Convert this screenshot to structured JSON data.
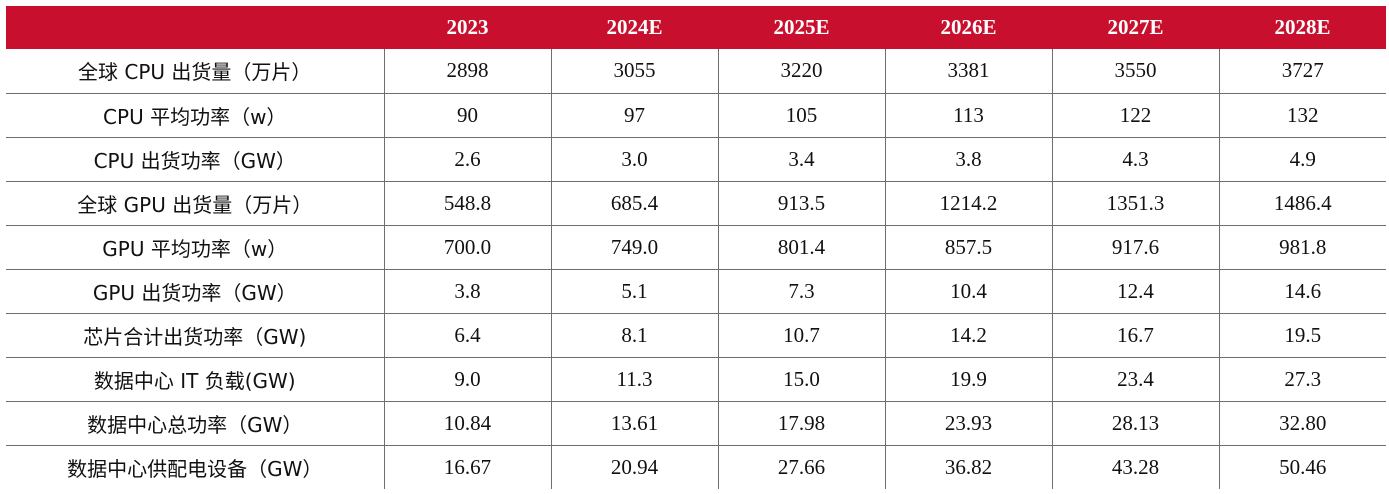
{
  "table": {
    "header": {
      "corner": "",
      "years": [
        "2023",
        "2024E",
        "2025E",
        "2026E",
        "2027E",
        "2028E"
      ]
    },
    "rows": [
      {
        "label": "全球 CPU 出货量（万片）",
        "values": [
          "2898",
          "3055",
          "3220",
          "3381",
          "3550",
          "3727"
        ]
      },
      {
        "label": "CPU 平均功率（w）",
        "values": [
          "90",
          "97",
          "105",
          "113",
          "122",
          "132"
        ]
      },
      {
        "label": "CPU 出货功率（GW）",
        "values": [
          "2.6",
          "3.0",
          "3.4",
          "3.8",
          "4.3",
          "4.9"
        ]
      },
      {
        "label": "全球 GPU 出货量（万片）",
        "values": [
          "548.8",
          "685.4",
          "913.5",
          "1214.2",
          "1351.3",
          "1486.4"
        ]
      },
      {
        "label": "GPU 平均功率（w）",
        "values": [
          "700.0",
          "749.0",
          "801.4",
          "857.5",
          "917.6",
          "981.8"
        ]
      },
      {
        "label": "GPU 出货功率（GW）",
        "values": [
          "3.8",
          "5.1",
          "7.3",
          "10.4",
          "12.4",
          "14.6"
        ]
      },
      {
        "label": "芯片合计出货功率（GW)",
        "values": [
          "6.4",
          "8.1",
          "10.7",
          "14.2",
          "16.7",
          "19.5"
        ]
      },
      {
        "label": "数据中心 IT 负载(GW)",
        "values": [
          "9.0",
          "11.3",
          "15.0",
          "19.9",
          "23.4",
          "27.3"
        ]
      },
      {
        "label": "数据中心总功率（GW）",
        "values": [
          "10.84",
          "13.61",
          "17.98",
          "23.93",
          "28.13",
          "32.80"
        ]
      },
      {
        "label": "数据中心供配电设备（GW）",
        "values": [
          "16.67",
          "20.94",
          "27.66",
          "36.82",
          "43.28",
          "50.46"
        ]
      }
    ],
    "colors": {
      "header_background": "#c8102e",
      "header_text": "#ffffff",
      "grid_line": "#6e6e6e"
    }
  }
}
